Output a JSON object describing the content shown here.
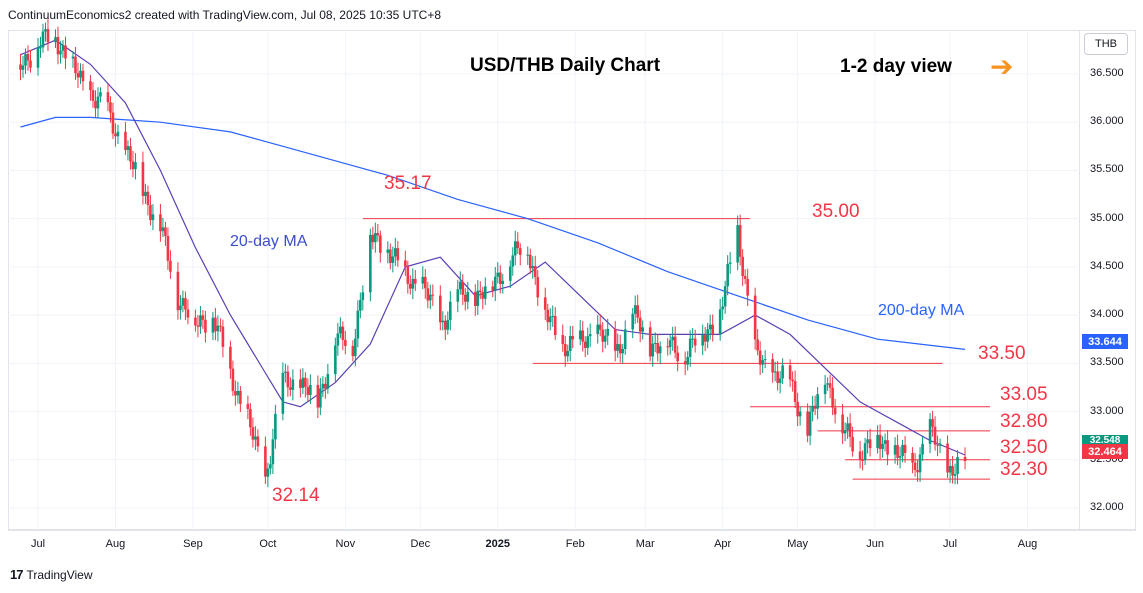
{
  "header": {
    "text": "ContinuumEconomics2 created with TradingView.com, Jul 08, 2025 10:35 UTC+8"
  },
  "currency": "THB",
  "footer": {
    "brand": "TradingView"
  },
  "annotations": {
    "title": "USD/THB Daily Chart",
    "view": "1-2 day view",
    "ma20_label": "20-day MA",
    "ma200_label": "200-day MA",
    "arrow_icon": "arrow-right-icon",
    "arrow_color": "#f7931e"
  },
  "price_badges": {
    "ma200": "33.644",
    "last": "32.464",
    "partial": "32.548"
  },
  "colors": {
    "up": "#089981",
    "down": "#f23645",
    "level": "#f23645",
    "ma20": "#5b3fb5",
    "ma200": "#2962ff"
  },
  "chart_data": {
    "type": "candlestick",
    "title": "USD/THB Daily Chart",
    "ylim": [
      31.6,
      37.1
    ],
    "y_ticks": [
      "32.000",
      "32.500",
      "33.000",
      "33.500",
      "34.000",
      "34.500",
      "35.000",
      "35.500",
      "36.000",
      "36.500"
    ],
    "x_ticks": [
      "Jul",
      "Aug",
      "Sep",
      "Oct",
      "Nov",
      "Dec",
      "2025",
      "Feb",
      "Mar",
      "Apr",
      "May",
      "Jun",
      "Jul",
      "Aug"
    ],
    "levels": [
      {
        "label": "35.17",
        "value": 35.17
      },
      {
        "label": "35.00",
        "value": 35.0
      },
      {
        "label": "33.50",
        "value": 33.5
      },
      {
        "label": "33.05",
        "value": 33.05
      },
      {
        "label": "32.80",
        "value": 32.8
      },
      {
        "label": "32.50",
        "value": 32.5
      },
      {
        "label": "32.30",
        "value": 32.3
      },
      {
        "label": "32.14",
        "value": 32.14
      }
    ],
    "close_path": [
      [
        "2024-06-24",
        36.6
      ],
      [
        "2024-07-01",
        36.8
      ],
      [
        "2024-07-08",
        36.9
      ],
      [
        "2024-07-15",
        36.55
      ],
      [
        "2024-07-22",
        36.3
      ],
      [
        "2024-07-29",
        36.1
      ],
      [
        "2024-08-05",
        35.7
      ],
      [
        "2024-08-12",
        35.3
      ],
      [
        "2024-08-19",
        34.9
      ],
      [
        "2024-08-26",
        34.2
      ],
      [
        "2024-09-02",
        33.9
      ],
      [
        "2024-09-09",
        34.0
      ],
      [
        "2024-09-16",
        33.4
      ],
      [
        "2024-09-23",
        32.9
      ],
      [
        "2024-09-30",
        32.3
      ],
      [
        "2024-10-07",
        33.3
      ],
      [
        "2024-10-14",
        33.3
      ],
      [
        "2024-10-21",
        33.1
      ],
      [
        "2024-10-28",
        33.75
      ],
      [
        "2024-11-04",
        33.7
      ],
      [
        "2024-11-11",
        34.8
      ],
      [
        "2024-11-18",
        34.7
      ],
      [
        "2024-11-25",
        34.4
      ],
      [
        "2024-12-02",
        34.3
      ],
      [
        "2024-12-09",
        33.9
      ],
      [
        "2024-12-16",
        34.2
      ],
      [
        "2024-12-23",
        34.2
      ],
      [
        "2024-12-30",
        34.3
      ],
      [
        "2025-01-06",
        34.6
      ],
      [
        "2025-01-13",
        34.7
      ],
      [
        "2025-01-20",
        34.0
      ],
      [
        "2025-01-27",
        33.7
      ],
      [
        "2025-02-03",
        33.7
      ],
      [
        "2025-02-10",
        33.85
      ],
      [
        "2025-02-17",
        33.6
      ],
      [
        "2025-02-24",
        34.0
      ],
      [
        "2025-03-03",
        33.7
      ],
      [
        "2025-03-10",
        33.7
      ],
      [
        "2025-03-17",
        33.6
      ],
      [
        "2025-03-24",
        33.8
      ],
      [
        "2025-03-31",
        34.0
      ],
      [
        "2025-04-07",
        34.9
      ],
      [
        "2025-04-14",
        33.6
      ],
      [
        "2025-04-21",
        33.4
      ],
      [
        "2025-04-28",
        33.3
      ],
      [
        "2025-05-05",
        32.8
      ],
      [
        "2025-05-12",
        33.4
      ],
      [
        "2025-05-19",
        32.8
      ],
      [
        "2025-05-26",
        32.6
      ],
      [
        "2025-06-02",
        32.7
      ],
      [
        "2025-06-09",
        32.6
      ],
      [
        "2025-06-16",
        32.4
      ],
      [
        "2025-06-23",
        32.8
      ],
      [
        "2025-06-30",
        32.4
      ],
      [
        "2025-07-07",
        32.464
      ]
    ],
    "ma20_path": [
      [
        "2024-06-24",
        36.7
      ],
      [
        "2024-07-08",
        36.85
      ],
      [
        "2024-07-22",
        36.6
      ],
      [
        "2024-08-05",
        36.2
      ],
      [
        "2024-08-19",
        35.5
      ],
      [
        "2024-09-02",
        34.7
      ],
      [
        "2024-09-16",
        34.0
      ],
      [
        "2024-09-30",
        33.4
      ],
      [
        "2024-10-07",
        33.1
      ],
      [
        "2024-10-14",
        33.05
      ],
      [
        "2024-10-28",
        33.3
      ],
      [
        "2024-11-11",
        33.7
      ],
      [
        "2024-11-25",
        34.5
      ],
      [
        "2024-12-09",
        34.6
      ],
      [
        "2024-12-23",
        34.2
      ],
      [
        "2025-01-06",
        34.3
      ],
      [
        "2025-01-20",
        34.55
      ],
      [
        "2025-02-03",
        34.2
      ],
      [
        "2025-02-17",
        33.85
      ],
      [
        "2025-03-03",
        33.8
      ],
      [
        "2025-03-17",
        33.8
      ],
      [
        "2025-03-31",
        33.8
      ],
      [
        "2025-04-14",
        34.0
      ],
      [
        "2025-04-28",
        33.8
      ],
      [
        "2025-05-12",
        33.45
      ],
      [
        "2025-05-26",
        33.1
      ],
      [
        "2025-06-09",
        32.9
      ],
      [
        "2025-06-23",
        32.7
      ],
      [
        "2025-07-07",
        32.55
      ]
    ],
    "ma200_path": [
      [
        "2024-06-24",
        35.95
      ],
      [
        "2024-07-08",
        36.05
      ],
      [
        "2024-07-22",
        36.05
      ],
      [
        "2024-08-19",
        36.0
      ],
      [
        "2024-09-16",
        35.9
      ],
      [
        "2024-10-07",
        35.75
      ],
      [
        "2024-10-28",
        35.6
      ],
      [
        "2024-11-18",
        35.45
      ],
      [
        "2024-12-16",
        35.2
      ],
      [
        "2025-01-13",
        35.0
      ],
      [
        "2025-02-10",
        34.75
      ],
      [
        "2025-03-10",
        34.45
      ],
      [
        "2025-04-07",
        34.2
      ],
      [
        "2025-05-05",
        33.95
      ],
      [
        "2025-06-02",
        33.75
      ],
      [
        "2025-07-07",
        33.644
      ]
    ]
  }
}
